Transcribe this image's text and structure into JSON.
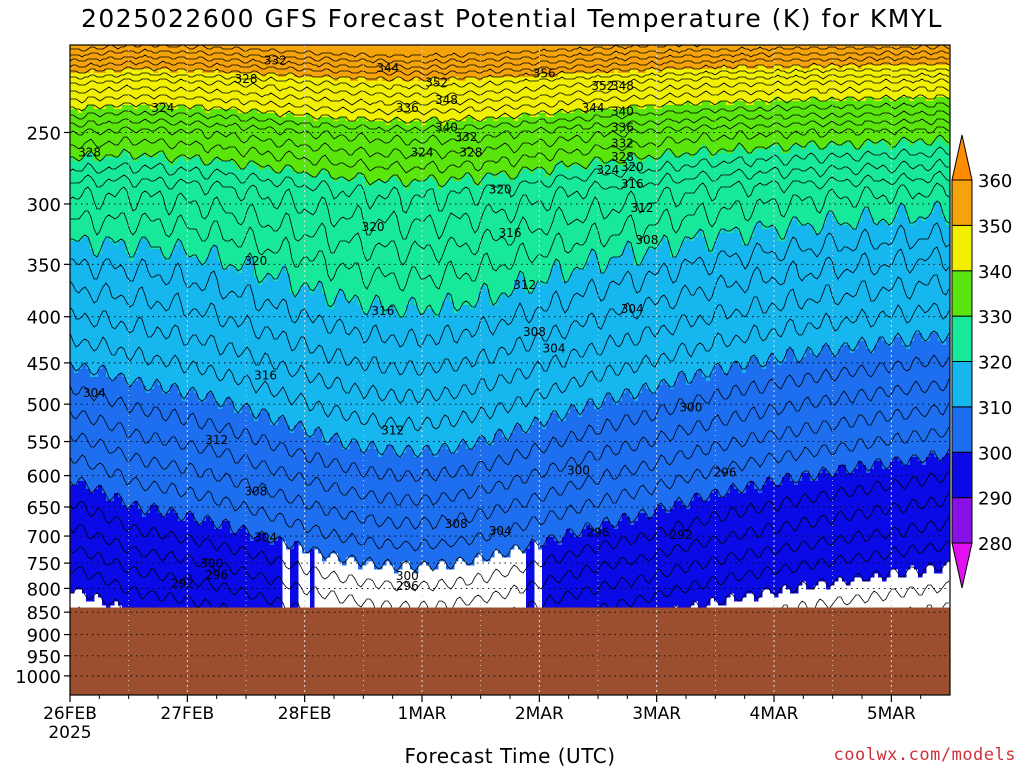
{
  "title": "2025022600 GFS Forecast Potential Temperature (K) for KMYL",
  "xlabel": "Forecast Time (UTC)",
  "credit": "coolwx.com/models",
  "colors": {
    "below_ground": "#9c4f2e",
    "bands": {
      "280-290": "#8a10e8",
      "290-300": "#0a0ae6",
      "300-310": "#1e6ff0",
      "310-320": "#16b6ee",
      "320-330": "#18e89a",
      "330-340": "#5ae60c",
      "340-350": "#f0f000",
      "350-360": "#f5a30a"
    },
    "colorbar_ends": {
      "low": "#e010f0",
      "high": "#ff8c00"
    }
  },
  "chart_data": {
    "type": "heatmap",
    "title": "2025022600 GFS Forecast Potential Temperature (K) for KMYL",
    "xlabel": "Forecast Time (UTC)",
    "ylabel": "",
    "variable": "Potential Temperature",
    "units": "K",
    "x_range_hours": [
      0,
      180
    ],
    "x_ticks": [
      {
        "label": "26FEB",
        "label2": "2025",
        "hour": 0
      },
      {
        "label": "27FEB",
        "hour": 24
      },
      {
        "label": "28FEB",
        "hour": 48
      },
      {
        "label": "1MAR",
        "hour": 72
      },
      {
        "label": "2MAR",
        "hour": 96
      },
      {
        "label": "3MAR",
        "hour": 120
      },
      {
        "label": "4MAR",
        "hour": 144
      },
      {
        "label": "5MAR",
        "hour": 168
      }
    ],
    "y_ticks_hPa": [
      250,
      300,
      350,
      400,
      450,
      500,
      550,
      600,
      650,
      700,
      750,
      800,
      850,
      900,
      950,
      1000
    ],
    "y_range_hPa": [
      200,
      1050
    ],
    "surface_pressure_hPa": 840,
    "colorbar_levels": [
      280,
      290,
      300,
      310,
      320,
      330,
      340,
      350,
      360
    ],
    "contour_interval": 2,
    "grid": true,
    "contour_labels": [
      {
        "value": "332",
        "hour": 42,
        "p": 208
      },
      {
        "value": "328",
        "hour": 36,
        "p": 218
      },
      {
        "value": "344",
        "hour": 65,
        "p": 212
      },
      {
        "value": "352",
        "hour": 75,
        "p": 220
      },
      {
        "value": "356",
        "hour": 97,
        "p": 215
      },
      {
        "value": "352",
        "hour": 109,
        "p": 222
      },
      {
        "value": "348",
        "hour": 113,
        "p": 222
      },
      {
        "value": "324",
        "hour": 19,
        "p": 235
      },
      {
        "value": "336",
        "hour": 69,
        "p": 235
      },
      {
        "value": "348",
        "hour": 77,
        "p": 230
      },
      {
        "value": "340",
        "hour": 77,
        "p": 247
      },
      {
        "value": "344",
        "hour": 107,
        "p": 235
      },
      {
        "value": "340",
        "hour": 113,
        "p": 237
      },
      {
        "value": "336",
        "hour": 113,
        "p": 247
      },
      {
        "value": "332",
        "hour": 113,
        "p": 257
      },
      {
        "value": "332",
        "hour": 81,
        "p": 253
      },
      {
        "value": "328",
        "hour": 113,
        "p": 266
      },
      {
        "value": "324",
        "hour": 72,
        "p": 263
      },
      {
        "value": "328",
        "hour": 82,
        "p": 263
      },
      {
        "value": "328",
        "hour": 4,
        "p": 263
      },
      {
        "value": "324",
        "hour": 110,
        "p": 275
      },
      {
        "value": "320",
        "hour": 115,
        "p": 273
      },
      {
        "value": "316",
        "hour": 115,
        "p": 285
      },
      {
        "value": "320",
        "hour": 88,
        "p": 289
      },
      {
        "value": "312",
        "hour": 117,
        "p": 303
      },
      {
        "value": "320",
        "hour": 62,
        "p": 318
      },
      {
        "value": "316",
        "hour": 90,
        "p": 323
      },
      {
        "value": "308",
        "hour": 118,
        "p": 329
      },
      {
        "value": "320",
        "hour": 38,
        "p": 347
      },
      {
        "value": "312",
        "hour": 93,
        "p": 369
      },
      {
        "value": "316",
        "hour": 64,
        "p": 394
      },
      {
        "value": "304",
        "hour": 115,
        "p": 392
      },
      {
        "value": "308",
        "hour": 95,
        "p": 416
      },
      {
        "value": "304",
        "hour": 99,
        "p": 434
      },
      {
        "value": "316",
        "hour": 40,
        "p": 465
      },
      {
        "value": "304",
        "hour": 5,
        "p": 486
      },
      {
        "value": "300",
        "hour": 127,
        "p": 504
      },
      {
        "value": "312",
        "hour": 66,
        "p": 535
      },
      {
        "value": "312",
        "hour": 30,
        "p": 548
      },
      {
        "value": "300",
        "hour": 104,
        "p": 592
      },
      {
        "value": "296",
        "hour": 134,
        "p": 595
      },
      {
        "value": "308",
        "hour": 38,
        "p": 625
      },
      {
        "value": "308",
        "hour": 79,
        "p": 679
      },
      {
        "value": "304",
        "hour": 88,
        "p": 691
      },
      {
        "value": "296",
        "hour": 108,
        "p": 694
      },
      {
        "value": "304",
        "hour": 40,
        "p": 703
      },
      {
        "value": "292",
        "hour": 125,
        "p": 698
      },
      {
        "value": "300",
        "hour": 29,
        "p": 751
      },
      {
        "value": "296",
        "hour": 30,
        "p": 773
      },
      {
        "value": "300",
        "hour": 69,
        "p": 775
      },
      {
        "value": "292",
        "hour": 23,
        "p": 790
      },
      {
        "value": "296",
        "hour": 69,
        "p": 795
      }
    ]
  }
}
